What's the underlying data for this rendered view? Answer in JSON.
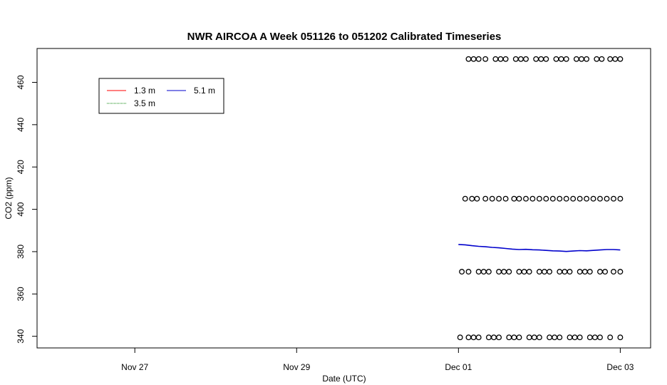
{
  "chart_data": {
    "type": "scatter",
    "title": "NWR AIRCOA A  Week 051126 to 051202  Calibrated Timeseries",
    "xlabel": "Date (UTC)",
    "ylabel": "CO2 (ppm)",
    "x_unit": "days",
    "xlim": [
      "2005-11-25T19:00",
      "2005-12-03T09:00"
    ],
    "ylim": [
      334.5,
      476
    ],
    "x_ticks": [
      {
        "label": "Nov 27",
        "value": "2005-11-27"
      },
      {
        "label": "Nov 29",
        "value": "2005-11-29"
      },
      {
        "label": "Dec 01",
        "value": "2005-12-01"
      },
      {
        "label": "Dec 03",
        "value": "2005-12-03"
      }
    ],
    "y_ticks": [
      340,
      360,
      380,
      400,
      420,
      440,
      460
    ],
    "grid": false,
    "legend": {
      "placement": "top-left",
      "entries": [
        {
          "label": "1.3 m",
          "color": "#ff0000"
        },
        {
          "label": "5.1 m",
          "color": "#0000cc"
        },
        {
          "label": "3.5 m",
          "color": "#008000"
        }
      ]
    },
    "series": [
      {
        "name": "5.1 m",
        "kind": "line",
        "color": "#0000cc",
        "x": [
          "2005-12-01T00:00",
          "2005-12-01T02:00",
          "2005-12-01T04:00",
          "2005-12-01T06:00",
          "2005-12-01T08:00",
          "2005-12-01T10:00",
          "2005-12-01T12:00",
          "2005-12-01T14:00",
          "2005-12-01T16:00",
          "2005-12-01T18:00",
          "2005-12-01T20:00",
          "2005-12-01T22:00",
          "2005-12-02T00:00",
          "2005-12-02T02:00",
          "2005-12-02T04:00",
          "2005-12-02T06:00",
          "2005-12-02T08:00",
          "2005-12-02T10:00",
          "2005-12-02T12:00",
          "2005-12-02T14:00",
          "2005-12-02T16:00",
          "2005-12-02T18:00",
          "2005-12-02T20:00",
          "2005-12-02T22:00",
          "2005-12-03T00:00"
        ],
        "y": [
          383.4,
          383.2,
          382.8,
          382.5,
          382.3,
          382.0,
          381.8,
          381.5,
          381.2,
          381.0,
          381.1,
          380.9,
          380.8,
          380.6,
          380.4,
          380.3,
          380.1,
          380.3,
          380.5,
          380.4,
          380.6,
          380.8,
          381.0,
          381.0,
          380.8
        ]
      },
      {
        "name": "",
        "kind": "points",
        "color": "#000000",
        "y_level": 471,
        "x": [
          "2005-12-01T03:00",
          "2005-12-01T04:30",
          "2005-12-01T06:00",
          "2005-12-01T08:00",
          "2005-12-01T11:00",
          "2005-12-01T12:30",
          "2005-12-01T14:00",
          "2005-12-01T17:00",
          "2005-12-01T18:30",
          "2005-12-01T20:00",
          "2005-12-01T23:00",
          "2005-12-02T00:30",
          "2005-12-02T02:00",
          "2005-12-02T05:00",
          "2005-12-02T06:30",
          "2005-12-02T08:00",
          "2005-12-02T11:00",
          "2005-12-02T12:30",
          "2005-12-02T14:00",
          "2005-12-02T17:00",
          "2005-12-02T18:30",
          "2005-12-02T21:00",
          "2005-12-02T22:30",
          "2005-12-03T00:00"
        ]
      },
      {
        "name": "",
        "kind": "points",
        "color": "#000000",
        "y_level": 405,
        "x": [
          "2005-12-01T02:00",
          "2005-12-01T04:00",
          "2005-12-01T05:30",
          "2005-12-01T08:00",
          "2005-12-01T10:00",
          "2005-12-01T12:00",
          "2005-12-01T14:00",
          "2005-12-01T16:30",
          "2005-12-01T18:00",
          "2005-12-01T20:00",
          "2005-12-01T22:00",
          "2005-12-02T00:00",
          "2005-12-02T02:00",
          "2005-12-02T04:00",
          "2005-12-02T06:00",
          "2005-12-02T08:00",
          "2005-12-02T10:00",
          "2005-12-02T12:00",
          "2005-12-02T14:00",
          "2005-12-02T16:00",
          "2005-12-02T18:00",
          "2005-12-02T20:00",
          "2005-12-02T22:00",
          "2005-12-03T00:00"
        ]
      },
      {
        "name": "",
        "kind": "points",
        "color": "#000000",
        "y_level": 370.5,
        "x": [
          "2005-12-01T01:00",
          "2005-12-01T03:00",
          "2005-12-01T06:00",
          "2005-12-01T07:30",
          "2005-12-01T09:00",
          "2005-12-01T12:00",
          "2005-12-01T13:30",
          "2005-12-01T15:00",
          "2005-12-01T18:00",
          "2005-12-01T19:30",
          "2005-12-01T21:00",
          "2005-12-02T00:00",
          "2005-12-02T01:30",
          "2005-12-02T03:00",
          "2005-12-02T06:00",
          "2005-12-02T07:30",
          "2005-12-02T09:00",
          "2005-12-02T12:00",
          "2005-12-02T13:30",
          "2005-12-02T15:00",
          "2005-12-02T18:00",
          "2005-12-02T19:30",
          "2005-12-02T22:00",
          "2005-12-03T00:00"
        ]
      },
      {
        "name": "",
        "kind": "points",
        "color": "#000000",
        "y_level": 339.5,
        "x": [
          "2005-12-01T00:30",
          "2005-12-01T03:00",
          "2005-12-01T04:30",
          "2005-12-01T06:00",
          "2005-12-01T09:00",
          "2005-12-01T10:30",
          "2005-12-01T12:00",
          "2005-12-01T15:00",
          "2005-12-01T16:30",
          "2005-12-01T18:00",
          "2005-12-01T21:00",
          "2005-12-01T22:30",
          "2005-12-02T00:00",
          "2005-12-02T03:00",
          "2005-12-02T04:30",
          "2005-12-02T06:00",
          "2005-12-02T09:00",
          "2005-12-02T10:30",
          "2005-12-02T12:00",
          "2005-12-02T15:00",
          "2005-12-02T16:30",
          "2005-12-02T18:00",
          "2005-12-02T21:00",
          "2005-12-03T00:00"
        ]
      }
    ]
  }
}
